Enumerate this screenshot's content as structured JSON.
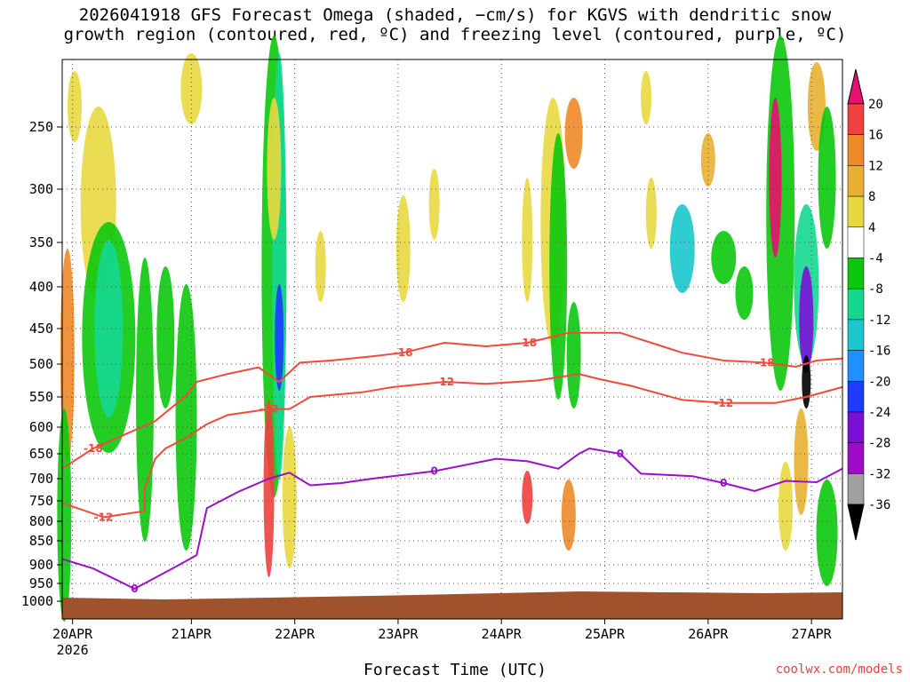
{
  "chart_data": {
    "type": "heatmap",
    "title_line1": "2026041918 GFS Forecast Omega (shaded, −cm/s) for KGVS with dendritic snow",
    "title_line2": "growth region (contoured, red, ºC) and freezing level (contoured, purple, ºC)",
    "xlabel": "Forecast Time (UTC)",
    "credit": "coolwx.com/models",
    "x_ticks": [
      {
        "label": "20APR",
        "sub": "2026",
        "t": 0.1
      },
      {
        "label": "21APR",
        "sub": "",
        "t": 1.25
      },
      {
        "label": "22APR",
        "sub": "",
        "t": 2.25
      },
      {
        "label": "23APR",
        "sub": "",
        "t": 3.25
      },
      {
        "label": "24APR",
        "sub": "",
        "t": 4.25
      },
      {
        "label": "25APR",
        "sub": "",
        "t": 5.25
      },
      {
        "label": "26APR",
        "sub": "",
        "t": 6.25
      },
      {
        "label": "27APR",
        "sub": "",
        "t": 7.25
      }
    ],
    "y_ticks": [
      250,
      300,
      350,
      400,
      450,
      500,
      550,
      600,
      650,
      700,
      750,
      800,
      850,
      900,
      950,
      1000
    ],
    "y_range": [
      1000,
      200
    ],
    "colorbar": {
      "labels": [
        "20",
        "16",
        "12",
        "8",
        "4",
        "-4",
        "-8",
        "-12",
        "-16",
        "-20",
        "-24",
        "-28",
        "-32",
        "-36"
      ],
      "colors": [
        "#e8106e",
        "#f04040",
        "#ee8a28",
        "#e8b030",
        "#e8d840",
        "#ffffff",
        "#0cc80c",
        "#14d890",
        "#18c8cc",
        "#1e90ff",
        "#1e3cff",
        "#7a10d8",
        "#9e0cc8",
        "#a0a0a0",
        "#000000"
      ]
    },
    "contours_red": [
      {
        "label": "-18",
        "points": [
          [
            0,
            680
          ],
          [
            0.3,
            640
          ],
          [
            0.9,
            590
          ],
          [
            1.2,
            548
          ],
          [
            1.3,
            527
          ],
          [
            1.6,
            515
          ],
          [
            1.9,
            505
          ],
          [
            2.1,
            527
          ],
          [
            2.3,
            498
          ],
          [
            2.6,
            495
          ],
          [
            3.0,
            489
          ],
          [
            3.3,
            484
          ],
          [
            3.7,
            470
          ],
          [
            4.1,
            475
          ],
          [
            4.5,
            470
          ],
          [
            4.9,
            456
          ],
          [
            5.4,
            456
          ],
          [
            5.7,
            470
          ],
          [
            6.0,
            484
          ],
          [
            6.4,
            495
          ],
          [
            6.8,
            498
          ],
          [
            7.1,
            504
          ],
          [
            7.3,
            495
          ],
          [
            7.55,
            492
          ]
        ]
      },
      {
        "label": "-12",
        "points": [
          [
            0,
            755
          ],
          [
            0.4,
            790
          ],
          [
            0.8,
            775
          ],
          [
            0.8,
            720
          ],
          [
            0.9,
            660
          ],
          [
            1.0,
            640
          ],
          [
            1.2,
            620
          ],
          [
            1.4,
            595
          ],
          [
            1.6,
            580
          ],
          [
            2.0,
            570
          ],
          [
            2.2,
            570
          ],
          [
            2.4,
            550
          ],
          [
            2.9,
            543
          ],
          [
            3.2,
            535
          ],
          [
            3.7,
            527
          ],
          [
            4.1,
            530
          ],
          [
            4.6,
            525
          ],
          [
            5.0,
            515
          ],
          [
            5.2,
            523
          ],
          [
            5.5,
            533
          ],
          [
            6.0,
            555
          ],
          [
            6.4,
            560
          ],
          [
            6.9,
            560
          ],
          [
            7.2,
            550
          ],
          [
            7.55,
            535
          ]
        ]
      }
    ],
    "contour_purple": {
      "label": "0",
      "points": [
        [
          0,
          888
        ],
        [
          0.3,
          910
        ],
        [
          0.7,
          965
        ],
        [
          1.1,
          905
        ],
        [
          1.3,
          880
        ],
        [
          1.4,
          768
        ],
        [
          1.7,
          730
        ],
        [
          2.0,
          700
        ],
        [
          2.2,
          688
        ],
        [
          2.4,
          715
        ],
        [
          2.7,
          710
        ],
        [
          3.0,
          700
        ],
        [
          3.6,
          685
        ],
        [
          4.2,
          660
        ],
        [
          4.5,
          665
        ],
        [
          4.8,
          680
        ],
        [
          5.0,
          650
        ],
        [
          5.1,
          640
        ],
        [
          5.4,
          650
        ],
        [
          5.6,
          690
        ],
        [
          6.1,
          695
        ],
        [
          6.4,
          710
        ],
        [
          6.7,
          728
        ],
        [
          7.0,
          705
        ],
        [
          7.3,
          708
        ],
        [
          7.55,
          680
        ]
      ]
    }
  }
}
